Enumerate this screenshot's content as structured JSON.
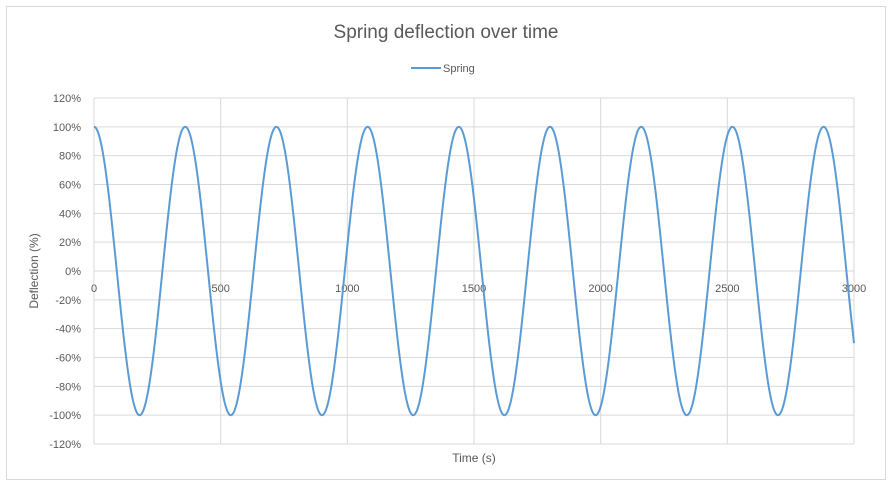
{
  "chart_data": {
    "type": "line",
    "title": "Spring deflection over time",
    "xlabel": "Time (s)",
    "ylabel": "Deflection (%)",
    "xlim": [
      0,
      3000
    ],
    "ylim": [
      -120,
      120
    ],
    "x_ticks": [
      "0",
      "500",
      "1000",
      "1500",
      "2000",
      "2500",
      "3000"
    ],
    "y_ticks": [
      "120%",
      "100%",
      "80%",
      "60%",
      "40%",
      "20%",
      "0%",
      "-20%",
      "-40%",
      "-60%",
      "-80%",
      "-100%",
      "-120%"
    ],
    "legend_position": "top",
    "grid": true,
    "series": [
      {
        "name": "Spring",
        "color": "#5B9BD5",
        "model": {
          "form": "100*cos(2*pi*t/period)",
          "period_s": 360,
          "amplitude_pct": 100,
          "t_start": 0,
          "t_end": 3000
        },
        "x": [
          0,
          180,
          360,
          540,
          720,
          900,
          1080,
          1260,
          1440,
          1620,
          1800,
          1980,
          2160,
          2340,
          2520,
          2700,
          2880,
          3000
        ],
        "values": [
          100,
          -100,
          100,
          -100,
          100,
          -100,
          100,
          -100,
          100,
          -100,
          100,
          -100,
          100,
          -100,
          100,
          -100,
          100,
          -50
        ]
      }
    ]
  }
}
